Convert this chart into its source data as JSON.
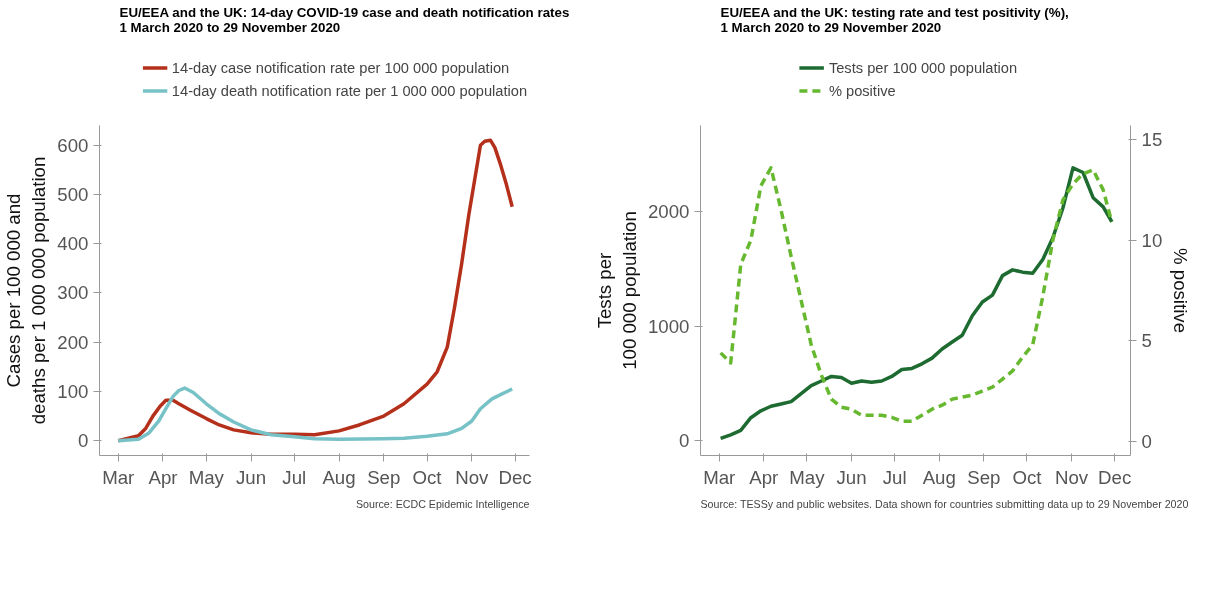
{
  "chart_data": [
    {
      "type": "line",
      "title": "EU/EEA and the UK: 14-day COVID-19 case and death notification rates\n1 March 2020 to 29 November 2020",
      "ylabel": "Cases per 100 000 and\ndeaths per 1 000 000 population",
      "annotations": [
        "Source: ECDC Epidemic Intelligence"
      ],
      "legend": "top",
      "grid": false,
      "line_style": "solid",
      "xlim": [
        "2020-02-17",
        "2020-12-11"
      ],
      "xticks": [
        {
          "value": "2020-03-01",
          "label": "Mar"
        },
        {
          "value": "2020-04-01",
          "label": "Apr"
        },
        {
          "value": "2020-05-01",
          "label": "May"
        },
        {
          "value": "2020-06-01",
          "label": "Jun"
        },
        {
          "value": "2020-07-01",
          "label": "Jul"
        },
        {
          "value": "2020-08-01",
          "label": "Aug"
        },
        {
          "value": "2020-09-01",
          "label": "Sep"
        },
        {
          "value": "2020-10-01",
          "label": "Oct"
        },
        {
          "value": "2020-11-01",
          "label": "Nov"
        },
        {
          "value": "2020-12-01",
          "label": "Dec"
        }
      ],
      "ylim": [
        -30,
        640
      ],
      "yticks": [
        0,
        100,
        200,
        300,
        400,
        500,
        600
      ],
      "series": [
        {
          "name": "14-day case notification rate per 100 000 population",
          "color": "#b5301b",
          "x": [
            "2020-03-01",
            "2020-03-15",
            "2020-03-20",
            "2020-03-25",
            "2020-03-30",
            "2020-04-03",
            "2020-04-08",
            "2020-04-12",
            "2020-04-20",
            "2020-05-01",
            "2020-05-10",
            "2020-05-20",
            "2020-06-01",
            "2020-06-15",
            "2020-07-01",
            "2020-07-15",
            "2020-08-01",
            "2020-08-15",
            "2020-09-01",
            "2020-09-15",
            "2020-10-01",
            "2020-10-08",
            "2020-10-15",
            "2020-10-20",
            "2020-10-25",
            "2020-10-30",
            "2020-11-03",
            "2020-11-07",
            "2020-11-10",
            "2020-11-14",
            "2020-11-17",
            "2020-11-21",
            "2020-11-25",
            "2020-11-29"
          ],
          "values": [
            0,
            10,
            25,
            50,
            70,
            82,
            82,
            75,
            62,
            45,
            32,
            22,
            16,
            13,
            13,
            12,
            20,
            32,
            50,
            75,
            115,
            140,
            190,
            270,
            360,
            460,
            530,
            600,
            608,
            610,
            595,
            560,
            520,
            475
          ]
        },
        {
          "name": "14-day death notification rate per 1 000 000 population",
          "color": "#77c2c7",
          "x": [
            "2020-03-01",
            "2020-03-15",
            "2020-03-22",
            "2020-03-29",
            "2020-04-03",
            "2020-04-08",
            "2020-04-12",
            "2020-04-16",
            "2020-04-22",
            "2020-05-01",
            "2020-05-10",
            "2020-05-20",
            "2020-06-01",
            "2020-06-15",
            "2020-07-01",
            "2020-07-15",
            "2020-08-01",
            "2020-09-01",
            "2020-09-15",
            "2020-10-01",
            "2020-10-15",
            "2020-10-25",
            "2020-11-01",
            "2020-11-07",
            "2020-11-15",
            "2020-11-22",
            "2020-11-29"
          ],
          "values": [
            0,
            3,
            15,
            40,
            65,
            90,
            102,
            107,
            98,
            75,
            55,
            38,
            22,
            12,
            8,
            4,
            3,
            4,
            5,
            9,
            14,
            25,
            40,
            65,
            85,
            95,
            105
          ]
        }
      ]
    },
    {
      "type": "line",
      "title": "EU/EEA and the UK: testing rate and test positivity (%),\n1 March 2020 to 29 November 2020",
      "ylabel": "Tests per\n100 000 population",
      "y2label": "% positive",
      "annotations": [
        "Source: TESSy and public websites. Data shown for countries submitting data up to 29 November 2020"
      ],
      "legend": "top",
      "grid": false,
      "xlim": [
        "2020-02-17",
        "2020-12-12"
      ],
      "xticks": [
        {
          "value": "2020-03-01",
          "label": "Mar"
        },
        {
          "value": "2020-04-01",
          "label": "Apr"
        },
        {
          "value": "2020-05-01",
          "label": "May"
        },
        {
          "value": "2020-06-01",
          "label": "Jun"
        },
        {
          "value": "2020-07-01",
          "label": "Jul"
        },
        {
          "value": "2020-08-01",
          "label": "Aug"
        },
        {
          "value": "2020-09-01",
          "label": "Sep"
        },
        {
          "value": "2020-10-01",
          "label": "Oct"
        },
        {
          "value": "2020-11-01",
          "label": "Nov"
        },
        {
          "value": "2020-12-01",
          "label": "Dec"
        }
      ],
      "ylim": [
        -130,
        2750
      ],
      "yticks": [
        0,
        1000,
        2000
      ],
      "y2lim": [
        -0.7,
        15.7
      ],
      "y2ticks": [
        0,
        5,
        10,
        15
      ],
      "x": [
        "2020-03-02",
        "2020-03-09",
        "2020-03-16",
        "2020-03-23",
        "2020-03-30",
        "2020-04-06",
        "2020-04-13",
        "2020-04-20",
        "2020-04-27",
        "2020-05-04",
        "2020-05-11",
        "2020-05-18",
        "2020-05-25",
        "2020-06-01",
        "2020-06-08",
        "2020-06-15",
        "2020-06-22",
        "2020-06-29",
        "2020-07-06",
        "2020-07-13",
        "2020-07-20",
        "2020-07-27",
        "2020-08-03",
        "2020-08-10",
        "2020-08-17",
        "2020-08-24",
        "2020-08-31",
        "2020-09-07",
        "2020-09-14",
        "2020-09-21",
        "2020-09-28",
        "2020-10-05",
        "2020-10-12",
        "2020-10-19",
        "2020-10-26",
        "2020-11-02",
        "2020-11-09",
        "2020-11-16",
        "2020-11-23",
        "2020-11-29"
      ],
      "series": [
        {
          "name": "Tests per 100 000 population",
          "color": "#1d6b30",
          "line_style": "solid",
          "values": [
            20,
            50,
            90,
            200,
            260,
            300,
            320,
            340,
            410,
            480,
            520,
            560,
            550,
            500,
            520,
            510,
            520,
            560,
            620,
            630,
            670,
            720,
            800,
            860,
            920,
            1090,
            1210,
            1270,
            1440,
            1490,
            1470,
            1460,
            1580,
            1770,
            2030,
            2380,
            2340,
            2120,
            2040,
            1910
          ]
        },
        {
          "name": "% positive",
          "color": "#66b82f",
          "line_style": "dashed",
          "axis": "y2",
          "values": [
            4.4,
            3.9,
            8.8,
            10.0,
            12.7,
            13.6,
            11.5,
            9.2,
            7.0,
            4.8,
            3.3,
            2.1,
            1.7,
            1.6,
            1.3,
            1.3,
            1.3,
            1.2,
            1.0,
            1.0,
            1.3,
            1.6,
            1.8,
            2.1,
            2.2,
            2.3,
            2.5,
            2.7,
            3.1,
            3.5,
            4.2,
            4.8,
            7.2,
            10.0,
            12.0,
            12.8,
            13.3,
            13.5,
            12.5,
            10.9
          ]
        }
      ]
    }
  ]
}
